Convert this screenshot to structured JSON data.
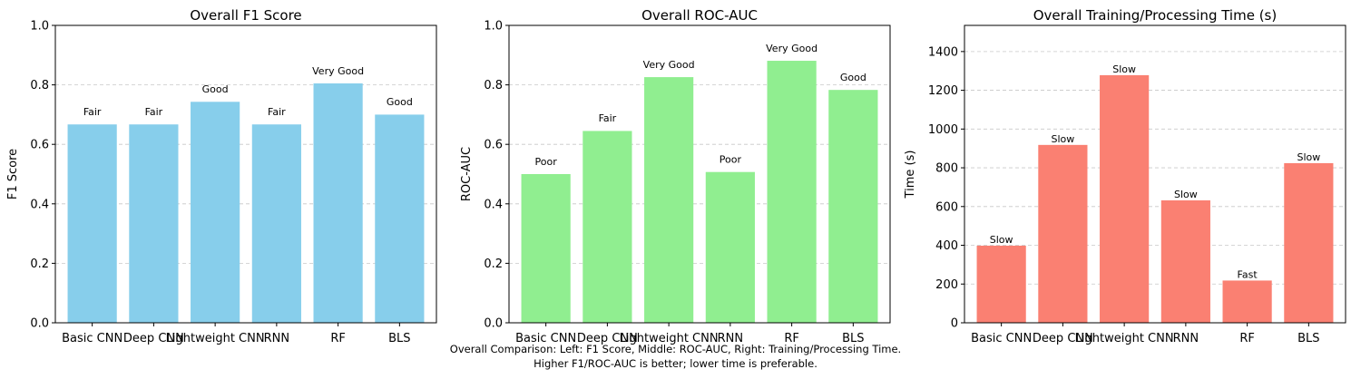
{
  "chart_data": [
    {
      "type": "bar",
      "title": "Overall F1 Score",
      "ylabel": "F1 Score",
      "xlabel": "",
      "categories": [
        "Basic CNN",
        "Deep CNN",
        "Lightweight CNN",
        "RNN",
        "RF",
        "BLS"
      ],
      "values": [
        0.667,
        0.667,
        0.743,
        0.667,
        0.805,
        0.7
      ],
      "labels": [
        "Fair",
        "Fair",
        "Good",
        "Fair",
        "Very Good",
        "Good"
      ],
      "ylim": [
        0,
        1.0
      ],
      "yticks": [
        0.0,
        0.2,
        0.4,
        0.6,
        0.8,
        1.0
      ],
      "ytick_labels": [
        "0.0",
        "0.2",
        "0.4",
        "0.6",
        "0.8",
        "1.0"
      ],
      "color": "#87CEEB",
      "grid": "y-dashed",
      "label_pad": 0.025
    },
    {
      "type": "bar",
      "title": "Overall ROC-AUC",
      "ylabel": "ROC-AUC",
      "xlabel": "",
      "categories": [
        "Basic CNN",
        "Deep CNN",
        "Lightweight CNN",
        "RNN",
        "RF",
        "BLS"
      ],
      "values": [
        0.5,
        0.645,
        0.826,
        0.507,
        0.881,
        0.783
      ],
      "labels": [
        "Poor",
        "Fair",
        "Very Good",
        "Poor",
        "Very Good",
        "Good"
      ],
      "ylim": [
        0,
        1.0
      ],
      "yticks": [
        0.0,
        0.2,
        0.4,
        0.6,
        0.8,
        1.0
      ],
      "ytick_labels": [
        "0.0",
        "0.2",
        "0.4",
        "0.6",
        "0.8",
        "1.0"
      ],
      "color": "#90EE90",
      "grid": "y-dashed",
      "label_pad": 0.025
    },
    {
      "type": "bar",
      "title": "Overall Training/Processing Time (s)",
      "ylabel": "Time (s)",
      "xlabel": "",
      "categories": [
        "Basic CNN",
        "Deep CNN",
        "Lightweight CNN",
        "RNN",
        "RF",
        "BLS"
      ],
      "values": [
        398,
        918,
        1278,
        632,
        218,
        824
      ],
      "labels": [
        "Slow",
        "Slow",
        "Slow",
        "Slow",
        "Fast",
        "Slow"
      ],
      "ylim": [
        0,
        1535
      ],
      "yticks": [
        0,
        200,
        400,
        600,
        800,
        1000,
        1200,
        1400
      ],
      "ytick_labels": [
        "0",
        "200",
        "400",
        "600",
        "800",
        "1000",
        "1200",
        "1400"
      ],
      "color": "#FA8072",
      "grid": "y-dashed",
      "label_pad": 5
    }
  ],
  "caption": {
    "line1": "Overall Comparison: Left: F1 Score, Middle: ROC-AUC, Right: Training/Processing Time.",
    "line2": "Higher F1/ROC-AUC is better; lower time is preferable."
  }
}
